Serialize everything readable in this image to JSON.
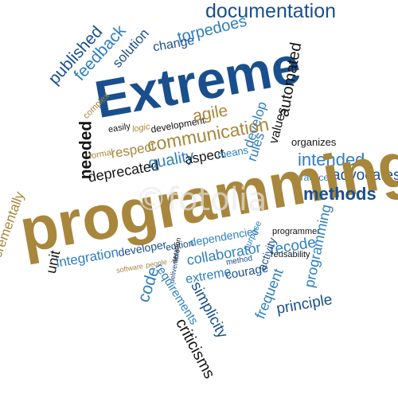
{
  "words": {
    "documentation": "documentation",
    "torpedoes": "torpedoes",
    "change": "change",
    "solution": "solution",
    "feedback": "feedback",
    "published": "published",
    "extreme_title": "Extreme",
    "automated": "automated",
    "complex": "complex",
    "easily": "easily",
    "logic": "logic",
    "development": "development",
    "agile": "agile",
    "develop": "develop",
    "values": "values",
    "needed": "needed",
    "formal": "formal",
    "respect": "respect",
    "communication": "communication",
    "rules": "rules",
    "organizes": "organizes",
    "deprecated": "deprecated",
    "quality": "quality",
    "aspect": "aspect",
    "means": "means",
    "intended": "intended",
    "practice": "practice",
    "advocates": "advocates",
    "programming_main": "programming",
    "methods": "methods",
    "incrementally": "incrementally",
    "unit": "unit",
    "integration": "integration",
    "developer": "developer",
    "edition": "edition",
    "dependencies": "dependencies",
    "programmer": "programmer",
    "purpose": "purpose",
    "recode": "recode",
    "programming_side": "programming",
    "software": "software",
    "people": "people",
    "deliverable": "deliverable",
    "iteration": "iteration",
    "collaborator": "collaborator",
    "activity": "activity",
    "reusability": "reusability",
    "code": "code",
    "requirements": "requirements",
    "method": "method",
    "extreme_small": "extreme",
    "courage": "courage",
    "frequent": "frequent",
    "simplicity": "simplicity",
    "principle": "principle",
    "criticisms": "criticisms"
  },
  "watermark": "©fotolia",
  "colors": {
    "dark_blue": "#1a4f8e",
    "mid_blue": "#2e7fc1",
    "light_blue": "#5aa2d6",
    "gold": "#a8863c",
    "black": "#151515"
  }
}
